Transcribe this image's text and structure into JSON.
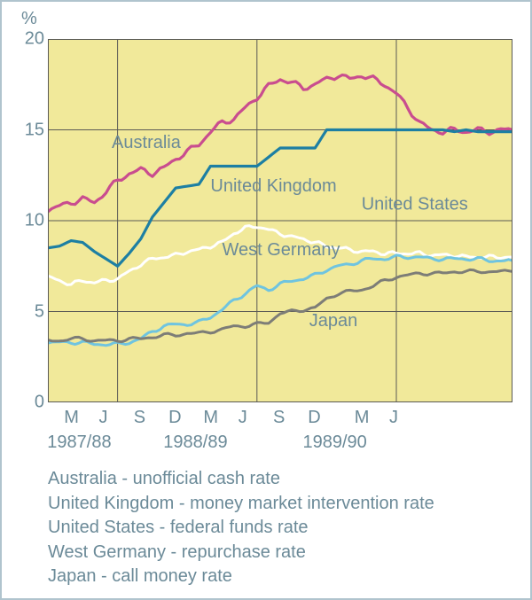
{
  "chart": {
    "type": "line",
    "title_unit": "%",
    "background_color": "#f1e99a",
    "plot_border_color": "#5a5a55",
    "grid_color": "#5a5a55",
    "text_color": "#6b8a98",
    "axis_fontsize": 20,
    "label_fontsize": 20,
    "x_domain": [
      0,
      40
    ],
    "y_domain": [
      0,
      20
    ],
    "y_ticks": [
      0,
      5,
      10,
      15,
      20
    ],
    "x_vgrid_positions": [
      6,
      18,
      30
    ],
    "x_ticks": [
      {
        "x": 2,
        "label": "M"
      },
      {
        "x": 5,
        "label": "J"
      },
      {
        "x": 8,
        "label": "S"
      },
      {
        "x": 11,
        "label": "D"
      },
      {
        "x": 14,
        "label": "M"
      },
      {
        "x": 17,
        "label": "J"
      },
      {
        "x": 20,
        "label": "S"
      },
      {
        "x": 23,
        "label": "D"
      },
      {
        "x": 27,
        "label": "M"
      },
      {
        "x": 30,
        "label": "J"
      }
    ],
    "x_year_labels": [
      {
        "x": 3,
        "label": "1987/88"
      },
      {
        "x": 13,
        "label": "1988/89"
      },
      {
        "x": 25,
        "label": "1989/90"
      }
    ],
    "series": [
      {
        "name": "Australia",
        "label": "Australia",
        "label_pos": {
          "x": 5.5,
          "y": 14
        },
        "color": "#c94d8f",
        "stroke_width": 3.2,
        "jitter_amp": 0.22,
        "jitter_freq": 2.8,
        "points": [
          [
            0,
            10.6
          ],
          [
            1,
            10.8
          ],
          [
            2,
            11.0
          ],
          [
            3,
            11.2
          ],
          [
            4,
            11.0
          ],
          [
            5,
            11.6
          ],
          [
            6,
            12.2
          ],
          [
            7,
            12.6
          ],
          [
            8,
            12.8
          ],
          [
            9,
            12.6
          ],
          [
            10,
            12.9
          ],
          [
            11,
            13.4
          ],
          [
            12,
            13.8
          ],
          [
            13,
            14.2
          ],
          [
            14,
            14.9
          ],
          [
            15,
            15.4
          ],
          [
            16,
            15.6
          ],
          [
            17,
            16.2
          ],
          [
            18,
            16.8
          ],
          [
            19,
            17.4
          ],
          [
            20,
            17.8
          ],
          [
            21,
            17.6
          ],
          [
            22,
            17.3
          ],
          [
            23,
            17.5
          ],
          [
            24,
            17.8
          ],
          [
            25,
            18.0
          ],
          [
            26,
            17.8
          ],
          [
            27,
            18.0
          ],
          [
            28,
            17.8
          ],
          [
            29,
            17.5
          ],
          [
            30,
            17.0
          ],
          [
            31,
            16.2
          ],
          [
            32,
            15.4
          ],
          [
            33,
            15.0
          ],
          [
            34,
            14.9
          ],
          [
            35,
            15.0
          ],
          [
            36,
            14.9
          ],
          [
            37,
            15.0
          ],
          [
            38,
            14.9
          ],
          [
            39,
            15.0
          ],
          [
            40,
            15.0
          ]
        ]
      },
      {
        "name": "United Kingdom",
        "label": "United Kingdom",
        "label_pos": {
          "x": 14,
          "y": 11.6
        },
        "color": "#1d7fa3",
        "stroke_width": 3.2,
        "jitter_amp": 0,
        "jitter_freq": 0,
        "points": [
          [
            0,
            8.5
          ],
          [
            1,
            8.6
          ],
          [
            2,
            8.9
          ],
          [
            3,
            8.8
          ],
          [
            4,
            8.3
          ],
          [
            5,
            7.9
          ],
          [
            6,
            7.5
          ],
          [
            7,
            8.2
          ],
          [
            8,
            9.0
          ],
          [
            9,
            10.2
          ],
          [
            10,
            11.0
          ],
          [
            11,
            11.8
          ],
          [
            12,
            11.9
          ],
          [
            13,
            12.0
          ],
          [
            14,
            13.0
          ],
          [
            15,
            13.0
          ],
          [
            16,
            13.0
          ],
          [
            17,
            13.0
          ],
          [
            18,
            13.0
          ],
          [
            19,
            13.5
          ],
          [
            20,
            14.0
          ],
          [
            21,
            14.0
          ],
          [
            22,
            14.0
          ],
          [
            23,
            14.0
          ],
          [
            24,
            15.0
          ],
          [
            25,
            15.0
          ],
          [
            26,
            15.0
          ],
          [
            27,
            15.0
          ],
          [
            28,
            15.0
          ],
          [
            29,
            15.0
          ],
          [
            30,
            15.0
          ],
          [
            31,
            15.0
          ],
          [
            32,
            15.0
          ],
          [
            33,
            15.0
          ],
          [
            34,
            15.0
          ],
          [
            35,
            14.9
          ],
          [
            36,
            15.0
          ],
          [
            37,
            14.9
          ],
          [
            38,
            14.9
          ],
          [
            39,
            14.9
          ],
          [
            40,
            14.9
          ]
        ]
      },
      {
        "name": "United States",
        "label": "United States",
        "label_pos": {
          "x": 27,
          "y": 10.6
        },
        "color": "#ffffff",
        "stroke_width": 3.0,
        "jitter_amp": 0.15,
        "jitter_freq": 3.0,
        "points": [
          [
            0,
            6.9
          ],
          [
            1,
            6.7
          ],
          [
            2,
            6.5
          ],
          [
            3,
            6.7
          ],
          [
            4,
            6.6
          ],
          [
            5,
            6.7
          ],
          [
            6,
            6.8
          ],
          [
            7,
            7.2
          ],
          [
            8,
            7.6
          ],
          [
            9,
            7.9
          ],
          [
            10,
            8.0
          ],
          [
            11,
            8.1
          ],
          [
            12,
            8.3
          ],
          [
            13,
            8.4
          ],
          [
            14,
            8.6
          ],
          [
            15,
            8.8
          ],
          [
            16,
            9.3
          ],
          [
            17,
            9.6
          ],
          [
            18,
            9.7
          ],
          [
            19,
            9.5
          ],
          [
            20,
            9.3
          ],
          [
            21,
            9.1
          ],
          [
            22,
            9.0
          ],
          [
            23,
            8.8
          ],
          [
            24,
            8.6
          ],
          [
            25,
            8.5
          ],
          [
            26,
            8.4
          ],
          [
            27,
            8.3
          ],
          [
            28,
            8.3
          ],
          [
            29,
            8.2
          ],
          [
            30,
            8.2
          ],
          [
            31,
            8.2
          ],
          [
            32,
            8.2
          ],
          [
            33,
            8.1
          ],
          [
            34,
            8.1
          ],
          [
            35,
            8.1
          ],
          [
            36,
            8.0
          ],
          [
            37,
            8.0
          ],
          [
            38,
            8.0
          ],
          [
            39,
            8.0
          ],
          [
            40,
            8.0
          ]
        ]
      },
      {
        "name": "West Germany",
        "label": "West Germany",
        "label_pos": {
          "x": 15,
          "y": 8.1
        },
        "color": "#6fc4e0",
        "stroke_width": 3.0,
        "jitter_amp": 0.14,
        "jitter_freq": 2.6,
        "points": [
          [
            0,
            3.3
          ],
          [
            1,
            3.3
          ],
          [
            2,
            3.3
          ],
          [
            3,
            3.3
          ],
          [
            4,
            3.2
          ],
          [
            5,
            3.2
          ],
          [
            6,
            3.2
          ],
          [
            7,
            3.3
          ],
          [
            8,
            3.5
          ],
          [
            9,
            3.9
          ],
          [
            10,
            4.2
          ],
          [
            11,
            4.3
          ],
          [
            12,
            4.3
          ],
          [
            13,
            4.4
          ],
          [
            14,
            4.7
          ],
          [
            15,
            5.1
          ],
          [
            16,
            5.6
          ],
          [
            17,
            6.0
          ],
          [
            18,
            6.4
          ],
          [
            19,
            6.2
          ],
          [
            20,
            6.5
          ],
          [
            21,
            6.7
          ],
          [
            22,
            6.8
          ],
          [
            23,
            7.0
          ],
          [
            24,
            7.3
          ],
          [
            25,
            7.5
          ],
          [
            26,
            7.6
          ],
          [
            27,
            7.8
          ],
          [
            28,
            7.9
          ],
          [
            29,
            7.9
          ],
          [
            30,
            8.0
          ],
          [
            31,
            8.0
          ],
          [
            32,
            8.0
          ],
          [
            33,
            7.9
          ],
          [
            34,
            7.9
          ],
          [
            35,
            7.9
          ],
          [
            36,
            7.9
          ],
          [
            37,
            7.9
          ],
          [
            38,
            7.8
          ],
          [
            39,
            7.8
          ],
          [
            40,
            7.8
          ]
        ]
      },
      {
        "name": "Japan",
        "label": "Japan",
        "label_pos": {
          "x": 22.5,
          "y": 4.2
        },
        "color": "#7d7d77",
        "stroke_width": 3.0,
        "jitter_amp": 0.13,
        "jitter_freq": 2.4,
        "points": [
          [
            0,
            3.4
          ],
          [
            1,
            3.4
          ],
          [
            2,
            3.5
          ],
          [
            3,
            3.5
          ],
          [
            4,
            3.4
          ],
          [
            5,
            3.4
          ],
          [
            6,
            3.4
          ],
          [
            7,
            3.5
          ],
          [
            8,
            3.5
          ],
          [
            9,
            3.6
          ],
          [
            10,
            3.7
          ],
          [
            11,
            3.7
          ],
          [
            12,
            3.8
          ],
          [
            13,
            3.8
          ],
          [
            14,
            3.9
          ],
          [
            15,
            4.0
          ],
          [
            16,
            4.2
          ],
          [
            17,
            4.2
          ],
          [
            18,
            4.3
          ],
          [
            19,
            4.4
          ],
          [
            20,
            4.9
          ],
          [
            21,
            5.0
          ],
          [
            22,
            5.1
          ],
          [
            23,
            5.2
          ],
          [
            24,
            5.7
          ],
          [
            25,
            6.0
          ],
          [
            26,
            6.1
          ],
          [
            27,
            6.2
          ],
          [
            28,
            6.4
          ],
          [
            29,
            6.7
          ],
          [
            30,
            6.9
          ],
          [
            31,
            7.0
          ],
          [
            32,
            7.1
          ],
          [
            33,
            7.1
          ],
          [
            34,
            7.1
          ],
          [
            35,
            7.2
          ],
          [
            36,
            7.2
          ],
          [
            37,
            7.2
          ],
          [
            38,
            7.2
          ],
          [
            39,
            7.2
          ],
          [
            40,
            7.2
          ]
        ]
      }
    ]
  },
  "legend": {
    "items": [
      "Australia - unofficial cash rate",
      "United Kingdom - money market intervention rate",
      "United States - federal funds rate",
      "West Germany - repurchase rate",
      "Japan - call money rate"
    ]
  }
}
